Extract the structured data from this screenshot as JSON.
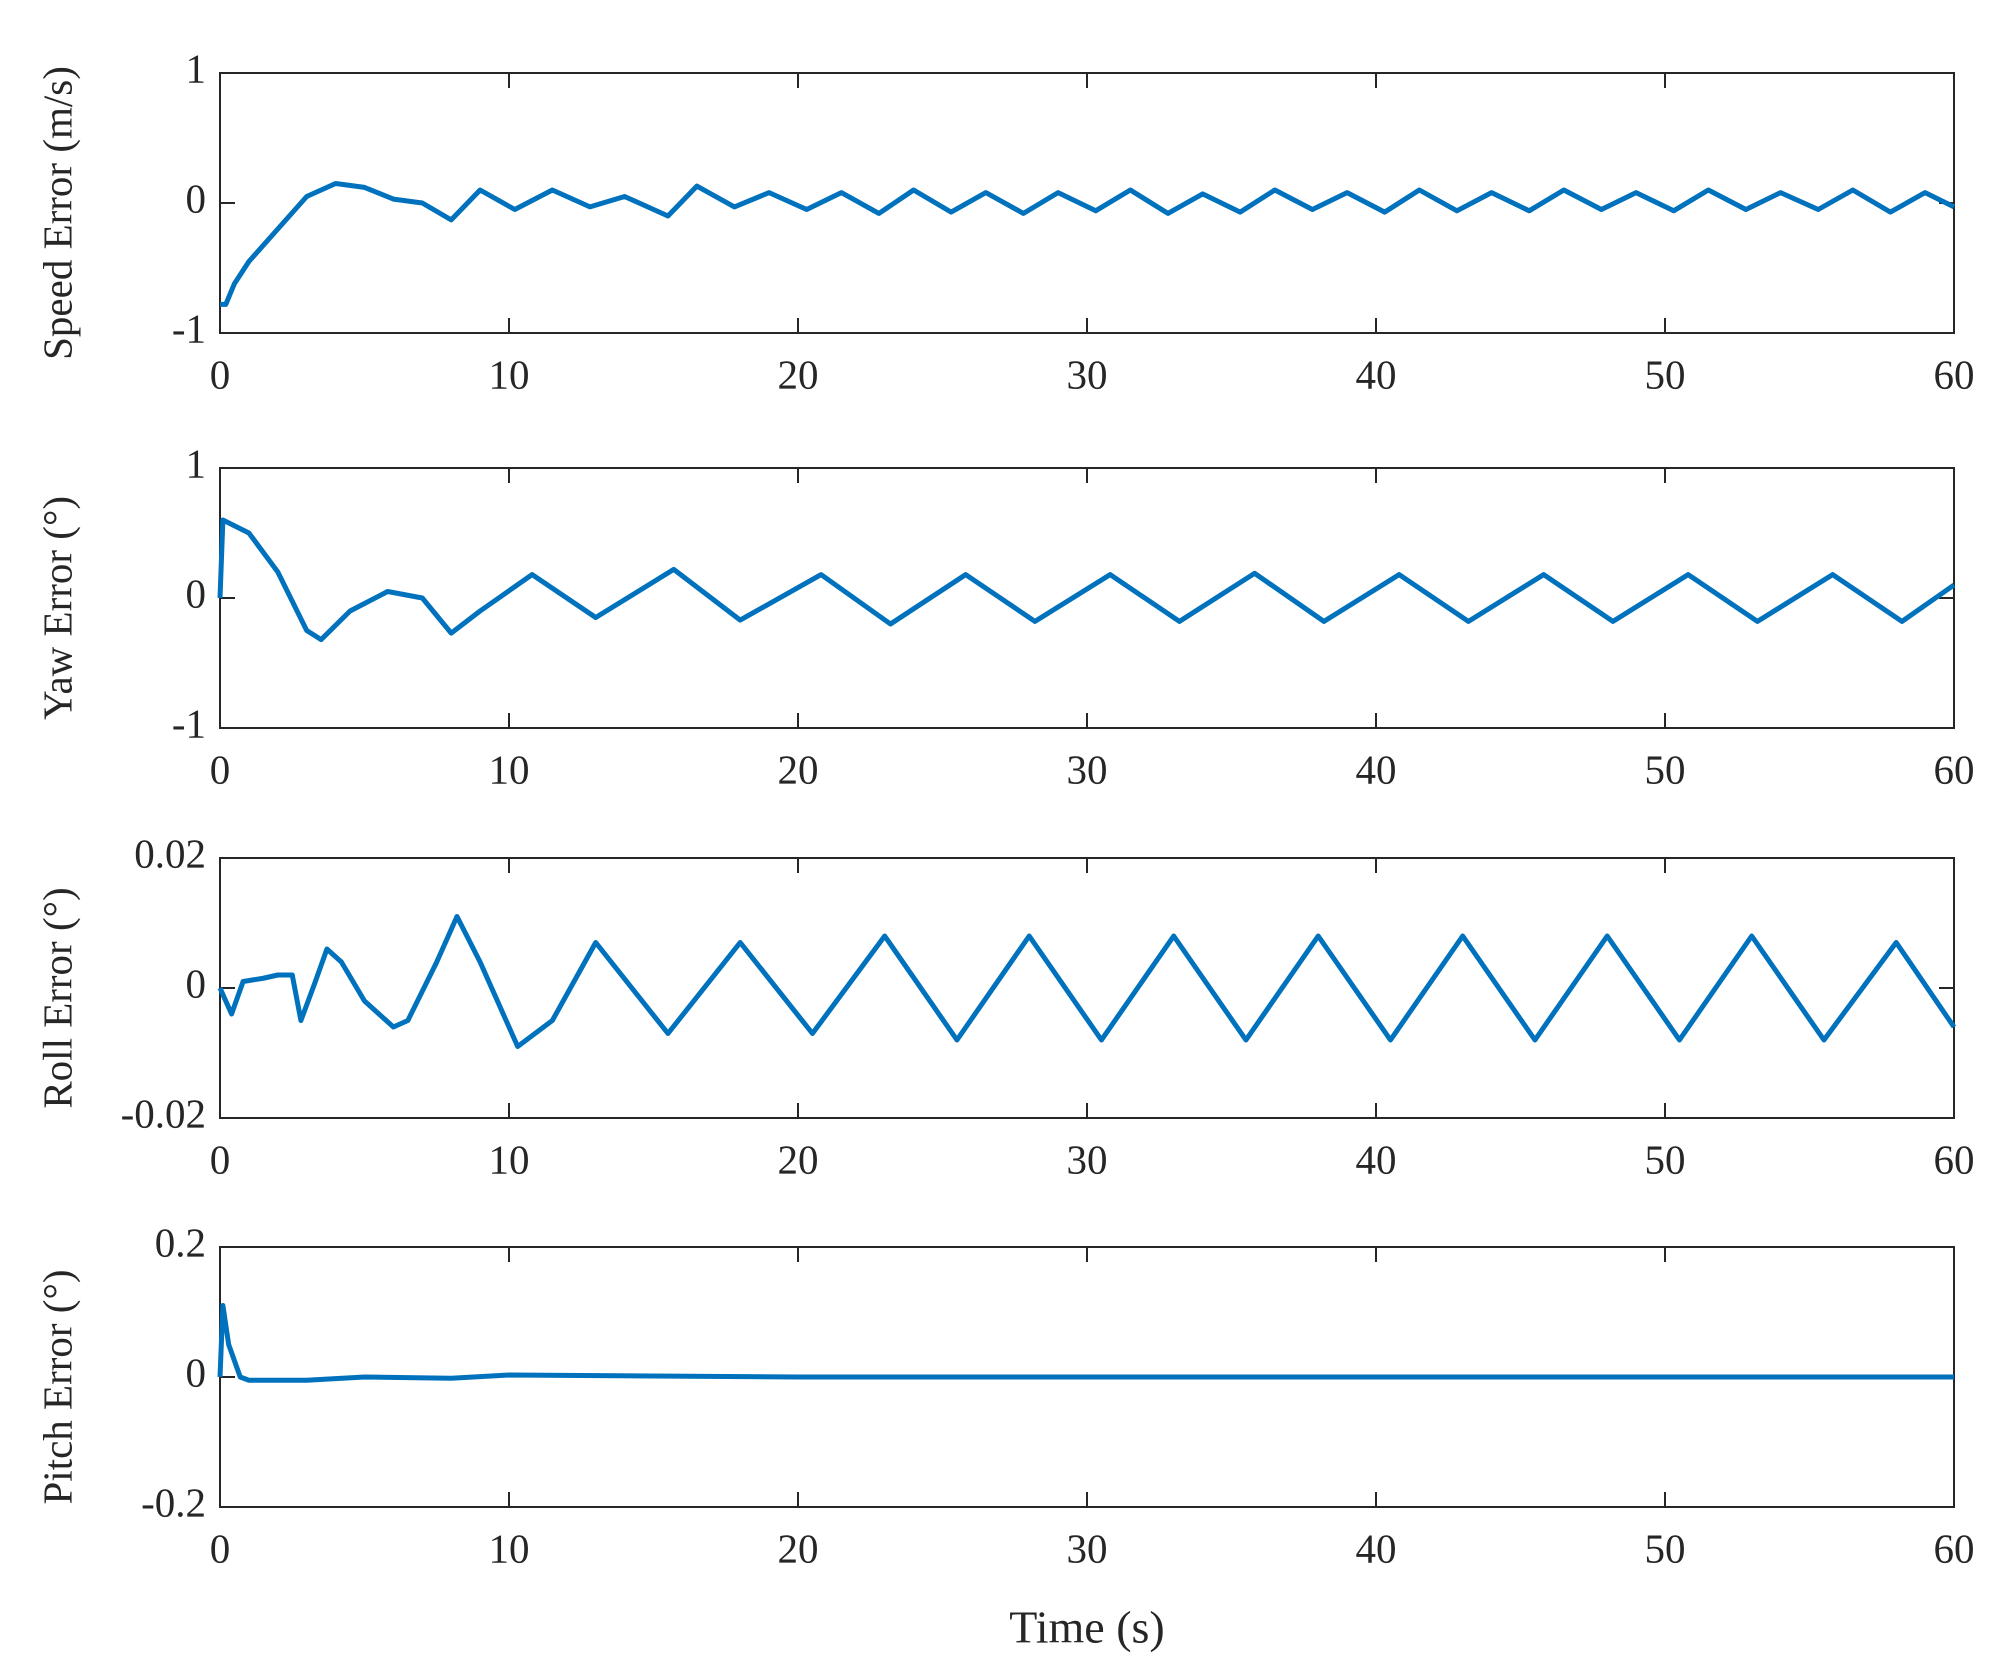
{
  "chart_data": [
    {
      "type": "line",
      "y_label": "Speed Error (m/s)",
      "x": [
        0,
        0.2,
        0.5,
        1,
        2,
        3,
        4,
        5,
        6,
        7,
        8,
        9,
        10.2,
        11.5,
        12.8,
        14,
        15.5,
        16.5,
        17.8,
        19,
        20.3,
        21.5,
        22.8,
        24,
        25.3,
        26.5,
        27.8,
        29,
        30.3,
        31.5,
        32.8,
        34,
        35.3,
        36.5,
        37.8,
        39,
        40.3,
        41.5,
        42.8,
        44,
        45.3,
        46.5,
        47.8,
        49,
        50.3,
        51.5,
        52.8,
        54,
        55.3,
        56.5,
        57.8,
        59,
        60
      ],
      "series": [
        {
          "color": "#0072bd",
          "values": [
            -0.78,
            -0.78,
            -0.62,
            -0.45,
            -0.2,
            0.05,
            0.15,
            0.12,
            0.03,
            0.0,
            -0.13,
            0.1,
            -0.05,
            0.1,
            -0.03,
            0.05,
            -0.1,
            0.13,
            -0.03,
            0.08,
            -0.05,
            0.08,
            -0.08,
            0.1,
            -0.07,
            0.08,
            -0.08,
            0.08,
            -0.06,
            0.1,
            -0.08,
            0.07,
            -0.07,
            0.1,
            -0.05,
            0.08,
            -0.07,
            0.1,
            -0.06,
            0.08,
            -0.06,
            0.1,
            -0.05,
            0.08,
            -0.06,
            0.1,
            -0.05,
            0.08,
            -0.05,
            0.1,
            -0.07,
            0.08,
            -0.03
          ]
        }
      ],
      "xlim": [
        0,
        60
      ],
      "ylim": [
        -1,
        1
      ],
      "xticks": [
        0,
        10,
        20,
        30,
        40,
        50,
        60
      ],
      "yticks": [
        -1,
        0,
        1
      ]
    },
    {
      "type": "line",
      "y_label": "Yaw Error (°)",
      "x": [
        0,
        0.1,
        1,
        2,
        3,
        3.5,
        4.5,
        5.8,
        7,
        8,
        9,
        10.8,
        13,
        15.7,
        18,
        20.8,
        23.2,
        25.8,
        28.2,
        30.8,
        33.2,
        35.8,
        38.2,
        40.8,
        43.2,
        45.8,
        48.2,
        50.8,
        53.2,
        55.8,
        58.2,
        60
      ],
      "series": [
        {
          "color": "#0072bd",
          "values": [
            0,
            0.6,
            0.5,
            0.2,
            -0.25,
            -0.32,
            -0.1,
            0.05,
            0.0,
            -0.27,
            -0.1,
            0.18,
            -0.15,
            0.22,
            -0.17,
            0.18,
            -0.2,
            0.18,
            -0.18,
            0.18,
            -0.18,
            0.19,
            -0.18,
            0.18,
            -0.18,
            0.18,
            -0.18,
            0.18,
            -0.18,
            0.18,
            -0.18,
            0.1
          ]
        }
      ],
      "xlim": [
        0,
        60
      ],
      "ylim": [
        -1,
        1
      ],
      "xticks": [
        0,
        10,
        20,
        30,
        40,
        50,
        60
      ],
      "yticks": [
        -1,
        0,
        1
      ]
    },
    {
      "type": "line",
      "y_label": "Roll Error (°)",
      "x": [
        0,
        0.4,
        0.8,
        1.5,
        2,
        2.5,
        2.8,
        3.3,
        3.7,
        4.2,
        5,
        6,
        6.5,
        7.5,
        8.2,
        9,
        10.3,
        11.5,
        13,
        15.5,
        18,
        20.5,
        23,
        25.5,
        28,
        30.5,
        33,
        35.5,
        38,
        40.5,
        43,
        45.5,
        48,
        50.5,
        53,
        55.5,
        58,
        60
      ],
      "series": [
        {
          "color": "#0072bd",
          "values": [
            0,
            -0.004,
            0.001,
            0.0015,
            0.002,
            0.002,
            -0.005,
            0.001,
            0.006,
            0.004,
            -0.002,
            -0.006,
            -0.005,
            0.004,
            0.011,
            0.004,
            -0.009,
            -0.005,
            0.007,
            -0.007,
            0.007,
            -0.007,
            0.008,
            -0.008,
            0.008,
            -0.008,
            0.008,
            -0.008,
            0.008,
            -0.008,
            0.008,
            -0.008,
            0.008,
            -0.008,
            0.008,
            -0.008,
            0.007,
            -0.006
          ]
        }
      ],
      "xlim": [
        0,
        60
      ],
      "ylim": [
        -0.02,
        0.02
      ],
      "xticks": [
        0,
        10,
        20,
        30,
        40,
        50,
        60
      ],
      "yticks": [
        -0.02,
        0,
        0.02
      ]
    },
    {
      "type": "line",
      "y_label": "Pitch Error (°)",
      "x_label": "Time (s)",
      "x": [
        0,
        0.1,
        0.3,
        0.7,
        1,
        3,
        5,
        8,
        10,
        20,
        30,
        40,
        50,
        60
      ],
      "series": [
        {
          "color": "#0072bd",
          "values": [
            0.0,
            0.11,
            0.05,
            0.0,
            -0.005,
            -0.005,
            0.0,
            -0.002,
            0.003,
            0.0,
            0.0,
            0.0,
            0.0,
            0.0
          ]
        }
      ],
      "xlim": [
        0,
        60
      ],
      "ylim": [
        -0.2,
        0.2
      ],
      "xticks": [
        0,
        10,
        20,
        30,
        40,
        50,
        60
      ],
      "yticks": [
        -0.2,
        0,
        0.2
      ]
    }
  ]
}
